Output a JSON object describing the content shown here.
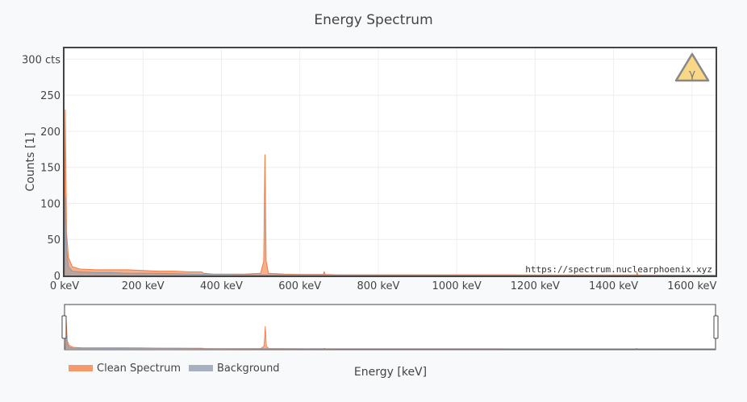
{
  "chart_data": {
    "type": "area",
    "title": "Energy Spectrum",
    "xlabel": "Energy [keV]",
    "ylabel": "Counts [1]",
    "xlim": [
      0,
      1660
    ],
    "ylim": [
      0,
      315
    ],
    "x_ticks": [
      {
        "value": 0,
        "label": "0 keV"
      },
      {
        "value": 200,
        "label": "200 keV"
      },
      {
        "value": 400,
        "label": "400 keV"
      },
      {
        "value": 600,
        "label": "600 keV"
      },
      {
        "value": 800,
        "label": "800 keV"
      },
      {
        "value": 1000,
        "label": "1000 keV"
      },
      {
        "value": 1200,
        "label": "1200 keV"
      },
      {
        "value": 1400,
        "label": "1400 keV"
      },
      {
        "value": 1600,
        "label": "1600 keV"
      }
    ],
    "y_ticks": [
      {
        "value": 0,
        "label": "0"
      },
      {
        "value": 50,
        "label": "50"
      },
      {
        "value": 100,
        "label": "100"
      },
      {
        "value": 150,
        "label": "150"
      },
      {
        "value": 200,
        "label": "200"
      },
      {
        "value": 250,
        "label": "250"
      },
      {
        "value": 300,
        "label": "300 cts"
      }
    ],
    "grid": true,
    "legend_position": "bottom-left",
    "annotation": "https://spectrum.nuclearphoenix.xyz",
    "series": [
      {
        "name": "Clean Spectrum",
        "color": "#f4793e",
        "points": [
          [
            0,
            0
          ],
          [
            2,
            230
          ],
          [
            5,
            60
          ],
          [
            10,
            25
          ],
          [
            20,
            12
          ],
          [
            40,
            9
          ],
          [
            80,
            8
          ],
          [
            120,
            8
          ],
          [
            160,
            8
          ],
          [
            200,
            7
          ],
          [
            240,
            6
          ],
          [
            280,
            6
          ],
          [
            320,
            5
          ],
          [
            350,
            5
          ],
          [
            355,
            3
          ],
          [
            380,
            2
          ],
          [
            420,
            2
          ],
          [
            460,
            2
          ],
          [
            500,
            3
          ],
          [
            508,
            20
          ],
          [
            511,
            168
          ],
          [
            514,
            20
          ],
          [
            520,
            3
          ],
          [
            560,
            2
          ],
          [
            600,
            1.5
          ],
          [
            660,
            1.5
          ],
          [
            662,
            5
          ],
          [
            665,
            1.5
          ],
          [
            700,
            1
          ],
          [
            800,
            1
          ],
          [
            900,
            1
          ],
          [
            1000,
            1
          ],
          [
            1100,
            1
          ],
          [
            1200,
            0.8
          ],
          [
            1300,
            0.8
          ],
          [
            1400,
            0.8
          ],
          [
            1458,
            0.8
          ],
          [
            1460,
            4
          ],
          [
            1462,
            0.8
          ],
          [
            1550,
            0.5
          ],
          [
            1660,
            0.5
          ]
        ]
      },
      {
        "name": "Background",
        "color": "#8c98a8",
        "points": [
          [
            0,
            0
          ],
          [
            2,
            110
          ],
          [
            5,
            35
          ],
          [
            10,
            12
          ],
          [
            20,
            6
          ],
          [
            40,
            5
          ],
          [
            80,
            4
          ],
          [
            120,
            4
          ],
          [
            160,
            3
          ],
          [
            200,
            3
          ],
          [
            240,
            3
          ],
          [
            280,
            2.5
          ],
          [
            320,
            2
          ],
          [
            360,
            1.5
          ],
          [
            400,
            1.5
          ],
          [
            500,
            1
          ],
          [
            600,
            1
          ],
          [
            700,
            0.8
          ],
          [
            800,
            0.7
          ],
          [
            1000,
            0.6
          ],
          [
            1200,
            0.5
          ],
          [
            1400,
            0.5
          ],
          [
            1660,
            0.4
          ]
        ]
      }
    ]
  },
  "colors": {
    "clean": "#f4793e",
    "background": "#8c98a8",
    "page_bg": "#f8f9fa",
    "plot_bg": "#ffffff",
    "grid": "#eeeeee",
    "text": "#444444",
    "badge_fill": "#f8d886",
    "badge_stroke": "#888888"
  },
  "icons": {
    "badge": "gamma-warning-triangle-icon",
    "badge_glyph": "γ"
  }
}
